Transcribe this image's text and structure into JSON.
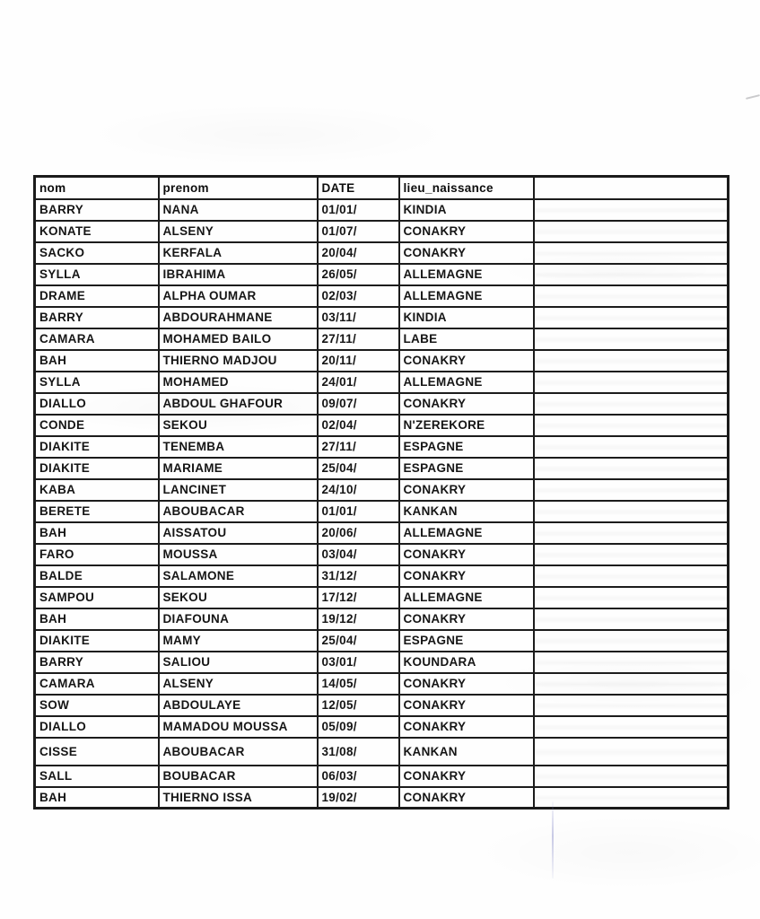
{
  "document": {
    "kind_label": "scanned-table-page",
    "ink_color": "#1b1b1b",
    "paper_color": "#fefefe",
    "artifact_line_color": "#8084c6"
  },
  "table": {
    "columns": [
      {
        "key": "nom",
        "label": "nom"
      },
      {
        "key": "prenom",
        "label": "prenom"
      },
      {
        "key": "date",
        "label": "DATE"
      },
      {
        "key": "lieu",
        "label": "lieu_naissance"
      },
      {
        "key": "empty",
        "label": ""
      }
    ],
    "rows": [
      {
        "nom": "BARRY",
        "prenom": "NANA",
        "date": "01/01/",
        "lieu": "KINDIA",
        "empty": ""
      },
      {
        "nom": "KONATE",
        "prenom": "ALSENY",
        "date": "01/07/",
        "lieu": "CONAKRY",
        "empty": ""
      },
      {
        "nom": "SACKO",
        "prenom": "KERFALA",
        "date": "20/04/",
        "lieu": "CONAKRY",
        "empty": ""
      },
      {
        "nom": "SYLLA",
        "prenom": "IBRAHIMA",
        "date": "26/05/",
        "lieu": "ALLEMAGNE",
        "empty": ""
      },
      {
        "nom": "DRAME",
        "prenom": "ALPHA OUMAR",
        "date": "02/03/",
        "lieu": "ALLEMAGNE",
        "empty": ""
      },
      {
        "nom": "BARRY",
        "prenom": "ABDOURAHMANE",
        "date": "03/11/",
        "lieu": "KINDIA",
        "empty": ""
      },
      {
        "nom": "CAMARA",
        "prenom": "MOHAMED BAILO",
        "date": "27/11/",
        "lieu": "LABE",
        "empty": ""
      },
      {
        "nom": "BAH",
        "prenom": "THIERNO MADJOU",
        "date": "20/11/",
        "lieu": "CONAKRY",
        "empty": ""
      },
      {
        "nom": "SYLLA",
        "prenom": "MOHAMED",
        "date": "24/01/",
        "lieu": "ALLEMAGNE",
        "empty": ""
      },
      {
        "nom": "DIALLO",
        "prenom": "ABDOUL GHAFOUR",
        "date": "09/07/",
        "lieu": "CONAKRY",
        "empty": ""
      },
      {
        "nom": "CONDE",
        "prenom": "SEKOU",
        "date": "02/04/",
        "lieu": "N'ZEREKORE",
        "empty": ""
      },
      {
        "nom": "DIAKITE",
        "prenom": "TENEMBA",
        "date": "27/11/",
        "lieu": "ESPAGNE",
        "empty": ""
      },
      {
        "nom": "DIAKITE",
        "prenom": "MARIAME",
        "date": "25/04/",
        "lieu": "ESPAGNE",
        "empty": ""
      },
      {
        "nom": "KABA",
        "prenom": "LANCINET",
        "date": "24/10/",
        "lieu": "CONAKRY",
        "empty": ""
      },
      {
        "nom": "BERETE",
        "prenom": "ABOUBACAR",
        "date": "01/01/",
        "lieu": "KANKAN",
        "empty": ""
      },
      {
        "nom": "BAH",
        "prenom": "AISSATOU",
        "date": "20/06/",
        "lieu": "ALLEMAGNE",
        "empty": ""
      },
      {
        "nom": "FARO",
        "prenom": "MOUSSA",
        "date": "03/04/",
        "lieu": "CONAKRY",
        "empty": ""
      },
      {
        "nom": "BALDE",
        "prenom": "SALAMONE",
        "date": "31/12/",
        "lieu": "CONAKRY",
        "empty": ""
      },
      {
        "nom": "SAMPOU",
        "prenom": "SEKOU",
        "date": "17/12/",
        "lieu": "ALLEMAGNE",
        "empty": ""
      },
      {
        "nom": "BAH",
        "prenom": "DIAFOUNA",
        "date": "19/12/",
        "lieu": "CONAKRY",
        "empty": ""
      },
      {
        "nom": "DIAKITE",
        "prenom": "MAMY",
        "date": "25/04/",
        "lieu": "ESPAGNE",
        "empty": ""
      },
      {
        "nom": "BARRY",
        "prenom": "SALIOU",
        "date": "03/01/",
        "lieu": "KOUNDARA",
        "empty": ""
      },
      {
        "nom": "CAMARA",
        "prenom": "ALSENY",
        "date": "14/05/",
        "lieu": "CONAKRY",
        "empty": ""
      },
      {
        "nom": "SOW",
        "prenom": "ABDOULAYE",
        "date": "12/05/",
        "lieu": "CONAKRY",
        "empty": ""
      },
      {
        "nom": "DIALLO",
        "prenom": "MAMADOU MOUSSA",
        "date": "05/09/",
        "lieu": "CONAKRY",
        "empty": ""
      },
      {
        "nom": "CISSE",
        "prenom": "ABOUBACAR",
        "date": "31/08/",
        "lieu": "KANKAN",
        "empty": ""
      },
      {
        "nom": "SALL",
        "prenom": "BOUBACAR",
        "date": "06/03/",
        "lieu": "CONAKRY",
        "empty": ""
      },
      {
        "nom": "BAH",
        "prenom": "THIERNO ISSA",
        "date": "19/02/",
        "lieu": "CONAKRY",
        "empty": ""
      }
    ]
  }
}
